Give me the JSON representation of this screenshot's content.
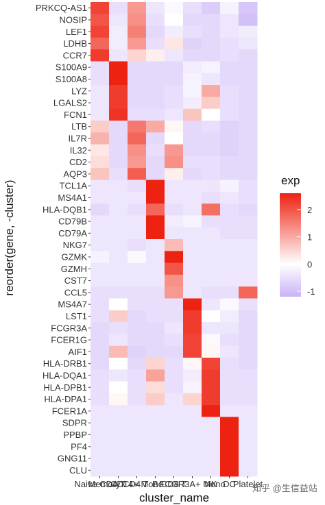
{
  "chart_data": {
    "type": "heatmap",
    "xlabel": "cluster_name",
    "ylabel": "reorder(gene, -cluster)",
    "legend": {
      "title": "exp",
      "ticks": [
        2,
        1,
        0,
        -1
      ],
      "min": -1.2,
      "max": 2.6,
      "low_color": "#c9b3f7",
      "mid_color": "#ffffff",
      "high_color": "#ee2211",
      "placement": "right"
    },
    "cluster_labels": [
      "Naive CD4 T",
      "Memory CD4 T",
      "CD14+ Mono",
      "B",
      "CD8 T",
      "FCGR3A+ Mono",
      "NK",
      "DC",
      "Platelet"
    ],
    "genes": [
      "PRKCQ-AS1",
      "NOSIP",
      "LEF1",
      "LDHB",
      "CCR7",
      "S100A9",
      "S100A8",
      "LYZ",
      "LGALS2",
      "FCN1",
      "LTB",
      "IL7R",
      "IL32",
      "CD2",
      "AQP3",
      "TCL1A",
      "MS4A1",
      "HLA-DQB1",
      "CD79B",
      "CD79A",
      "NKG7",
      "GZMK",
      "GZMH",
      "CST7",
      "CCL5",
      "MS4A7",
      "LST1",
      "FCGR3A",
      "FCER1G",
      "AIF1",
      "HLA-DRB1",
      "HLA-DQA1",
      "HLA-DPB1",
      "HLA-DPA1",
      "FCER1A",
      "SDPR",
      "PPBP",
      "PF4",
      "GNG11",
      "CLU"
    ],
    "values": [
      [
        2.2,
        -0.5,
        1.2,
        -0.4,
        -0.1,
        -0.5,
        -0.8,
        -0.2,
        -0.9
      ],
      [
        2.0,
        -0.4,
        1.3,
        -0.5,
        0.0,
        -0.6,
        -0.6,
        -0.4,
        -1.0
      ],
      [
        2.2,
        -0.3,
        1.5,
        -0.6,
        -0.3,
        -0.5,
        -0.6,
        -0.4,
        -0.3
      ],
      [
        1.8,
        -0.3,
        1.2,
        -0.5,
        0.3,
        -0.7,
        -0.6,
        -0.5,
        -0.4
      ],
      [
        2.3,
        -0.4,
        0.5,
        0.2,
        -0.4,
        -0.6,
        -0.6,
        -0.5,
        -0.6
      ],
      [
        -0.5,
        2.6,
        -0.6,
        -0.6,
        -0.6,
        -0.3,
        -0.2,
        -0.6,
        -0.6
      ],
      [
        -0.5,
        2.6,
        -0.6,
        -0.6,
        -0.6,
        -0.2,
        -0.4,
        -0.6,
        -0.6
      ],
      [
        -0.4,
        2.3,
        -0.6,
        -0.6,
        -0.5,
        -0.2,
        1.0,
        -0.5,
        -0.6
      ],
      [
        -0.4,
        2.3,
        -0.6,
        -0.6,
        -0.5,
        -0.3,
        0.6,
        -0.5,
        -0.6
      ],
      [
        -0.4,
        2.4,
        -0.5,
        -0.5,
        -0.4,
        0.7,
        0.0,
        -0.5,
        -0.6
      ],
      [
        0.6,
        -0.6,
        1.6,
        1.0,
        0.1,
        -0.6,
        -0.5,
        -0.7,
        -0.6
      ],
      [
        0.9,
        -0.6,
        1.8,
        -0.6,
        0.0,
        -0.6,
        -0.6,
        -0.7,
        -0.6
      ],
      [
        0.3,
        -0.6,
        1.3,
        -0.5,
        1.2,
        -0.6,
        -0.6,
        -0.7,
        -0.6
      ],
      [
        0.4,
        -0.6,
        1.2,
        -0.6,
        1.3,
        -0.5,
        -0.5,
        -0.6,
        -0.6
      ],
      [
        0.7,
        -0.5,
        1.9,
        -0.6,
        0.2,
        -0.6,
        -0.5,
        -0.6,
        -0.6
      ],
      [
        -0.4,
        -0.4,
        -0.5,
        2.6,
        -0.4,
        -0.4,
        -0.4,
        -0.2,
        -0.5
      ],
      [
        -0.4,
        -0.4,
        -0.4,
        2.6,
        -0.4,
        -0.4,
        -0.5,
        -0.4,
        -0.5
      ],
      [
        -0.6,
        -0.4,
        -0.5,
        1.8,
        -0.5,
        -0.4,
        1.7,
        -0.5,
        -0.6
      ],
      [
        -0.4,
        -0.4,
        -0.4,
        2.6,
        -0.3,
        -0.2,
        -0.5,
        -0.5,
        -0.5
      ],
      [
        -0.4,
        -0.4,
        -0.4,
        2.6,
        -0.4,
        -0.4,
        -0.4,
        -0.5,
        -0.5
      ],
      [
        -0.4,
        -0.4,
        -0.5,
        -0.4,
        0.8,
        -0.4,
        -0.4,
        -0.4,
        -0.4
      ],
      [
        -0.2,
        -0.4,
        -0.1,
        -0.4,
        2.6,
        -0.4,
        -0.4,
        -0.4,
        -0.4
      ],
      [
        -0.4,
        -0.4,
        -0.4,
        -0.4,
        2.0,
        -0.4,
        -0.4,
        -0.4,
        -0.4
      ],
      [
        -0.4,
        -0.4,
        -0.4,
        -0.4,
        1.3,
        -0.4,
        -0.4,
        -0.4,
        -0.4
      ],
      [
        -0.5,
        -0.5,
        -0.5,
        -0.5,
        1.2,
        -0.4,
        -0.5,
        -0.5,
        1.8
      ],
      [
        -0.5,
        0.0,
        -0.5,
        -0.5,
        -0.5,
        2.6,
        -0.4,
        -0.1,
        -0.5
      ],
      [
        -0.5,
        0.6,
        -0.6,
        -0.5,
        -0.5,
        2.3,
        0.0,
        -0.3,
        -0.6
      ],
      [
        -0.6,
        -0.5,
        -0.6,
        -0.6,
        -0.4,
        2.3,
        -0.4,
        -0.4,
        -0.6
      ],
      [
        -0.6,
        -0.4,
        -0.6,
        -0.6,
        -0.5,
        2.2,
        -0.1,
        -0.5,
        -0.6
      ],
      [
        -0.6,
        0.8,
        -0.7,
        -0.6,
        -0.6,
        2.2,
        0.1,
        -0.4,
        -0.6
      ],
      [
        -0.6,
        0.0,
        -0.6,
        0.5,
        -0.5,
        0.1,
        2.2,
        -0.5,
        -0.6
      ],
      [
        -0.5,
        -0.4,
        -0.5,
        1.1,
        -0.5,
        -0.3,
        2.3,
        -0.5,
        -0.5
      ],
      [
        -0.5,
        0.0,
        -0.5,
        0.4,
        -0.5,
        -0.2,
        2.3,
        -0.5,
        -0.5
      ],
      [
        -0.5,
        0.1,
        -0.5,
        0.6,
        -0.4,
        0.5,
        2.3,
        -0.5,
        -0.5
      ],
      [
        -0.4,
        -0.4,
        -0.4,
        -0.4,
        -0.4,
        -0.4,
        2.6,
        -0.4,
        -0.4
      ],
      [
        -0.4,
        -0.4,
        -0.4,
        -0.4,
        -0.4,
        -0.4,
        -0.4,
        2.6,
        -0.4
      ],
      [
        -0.4,
        -0.4,
        -0.4,
        -0.4,
        -0.4,
        -0.4,
        -0.4,
        2.6,
        -0.4
      ],
      [
        -0.4,
        -0.4,
        -0.4,
        -0.4,
        -0.4,
        -0.4,
        -0.4,
        2.6,
        -0.4
      ],
      [
        -0.4,
        -0.4,
        -0.4,
        -0.4,
        -0.4,
        -0.4,
        -0.4,
        2.6,
        -0.4
      ],
      [
        -0.4,
        -0.4,
        -0.4,
        -0.4,
        -0.4,
        -0.4,
        -0.4,
        2.6,
        -0.4
      ]
    ]
  },
  "watermark": "知乎 @生信益站"
}
